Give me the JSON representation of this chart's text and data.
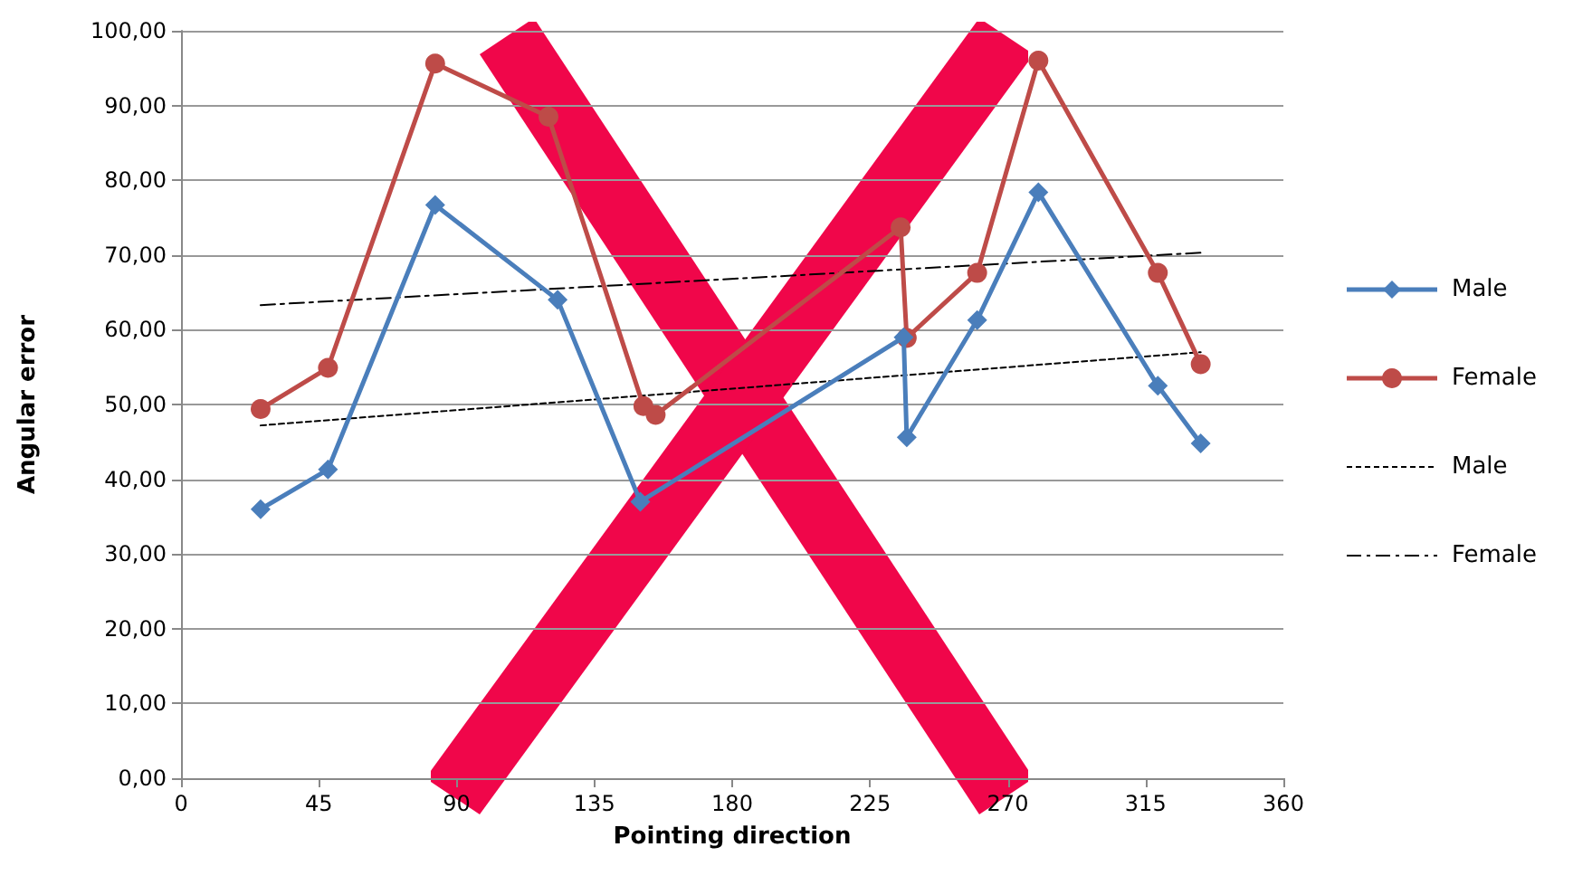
{
  "chart_data": {
    "type": "line",
    "xlabel": "Pointing direction",
    "ylabel": "Angular error",
    "xlim": [
      0,
      360
    ],
    "xticks": [
      0,
      45,
      90,
      135,
      180,
      225,
      270,
      315,
      360
    ],
    "ylim": [
      0,
      100
    ],
    "yticks": [
      {
        "value": 0,
        "label": "0,00"
      },
      {
        "value": 10,
        "label": "10,00"
      },
      {
        "value": 20,
        "label": "20,00"
      },
      {
        "value": 30,
        "label": "30,00"
      },
      {
        "value": 40,
        "label": "40,00"
      },
      {
        "value": 50,
        "label": "50,00"
      },
      {
        "value": 60,
        "label": "60,00"
      },
      {
        "value": 70,
        "label": "70,00"
      },
      {
        "value": 80,
        "label": "80,00"
      },
      {
        "value": 90,
        "label": "90,00"
      },
      {
        "value": 100,
        "label": "100,00"
      }
    ],
    "grid": "y",
    "legend": "right",
    "series": [
      {
        "name": "Male",
        "color": "#4a7ebb",
        "marker": "diamond",
        "line_style": "solid",
        "x": [
          26,
          48,
          83,
          123,
          150,
          236,
          237,
          260,
          280,
          319,
          333
        ],
        "values": [
          36,
          41.3,
          76.7,
          64,
          37,
          59,
          45.6,
          61.3,
          78.4,
          52.5,
          44.8
        ]
      },
      {
        "name": "Female",
        "color": "#be4b48",
        "marker": "circle",
        "line_style": "solid",
        "x": [
          26,
          48,
          83,
          120,
          151,
          155,
          235,
          237,
          260,
          280,
          319,
          333
        ],
        "values": [
          49.4,
          54.9,
          95.6,
          88.5,
          49.8,
          48.6,
          73.7,
          58.9,
          67.6,
          96,
          67.6,
          55.4
        ]
      },
      {
        "name": "Male",
        "color": "#000000",
        "marker": "none",
        "line_style": "dashed",
        "x": [
          26,
          333
        ],
        "values": [
          47.2,
          57
        ]
      },
      {
        "name": "Female",
        "color": "#000000",
        "marker": "none",
        "line_style": "dashdot",
        "x": [
          26,
          333
        ],
        "values": [
          63.3,
          70.3
        ]
      }
    ]
  }
}
